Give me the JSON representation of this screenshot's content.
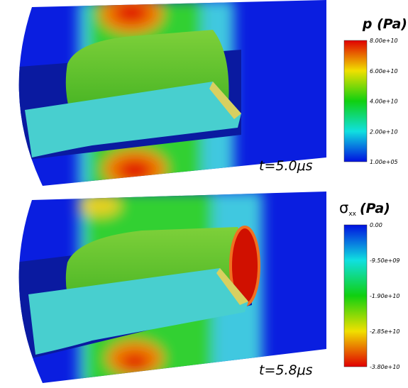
{
  "panels": [
    {
      "colorbar": {
        "title": "p (Pa)",
        "ticks": [
          "8.00e+10",
          "6.00e+10",
          "4.00e+10",
          "2.00e+10",
          "1.00e+05"
        ]
      },
      "time_label": "t=5.0μs"
    },
    {
      "colorbar": {
        "symbol": "σ",
        "subscript": "xx",
        "unit": "(Pa)",
        "ticks": [
          "0.00",
          "-9.50e+09",
          "-1.90e+10",
          "-2.85e+10",
          "-3.80e+10"
        ]
      },
      "time_label": "t=5.8μs"
    }
  ]
}
